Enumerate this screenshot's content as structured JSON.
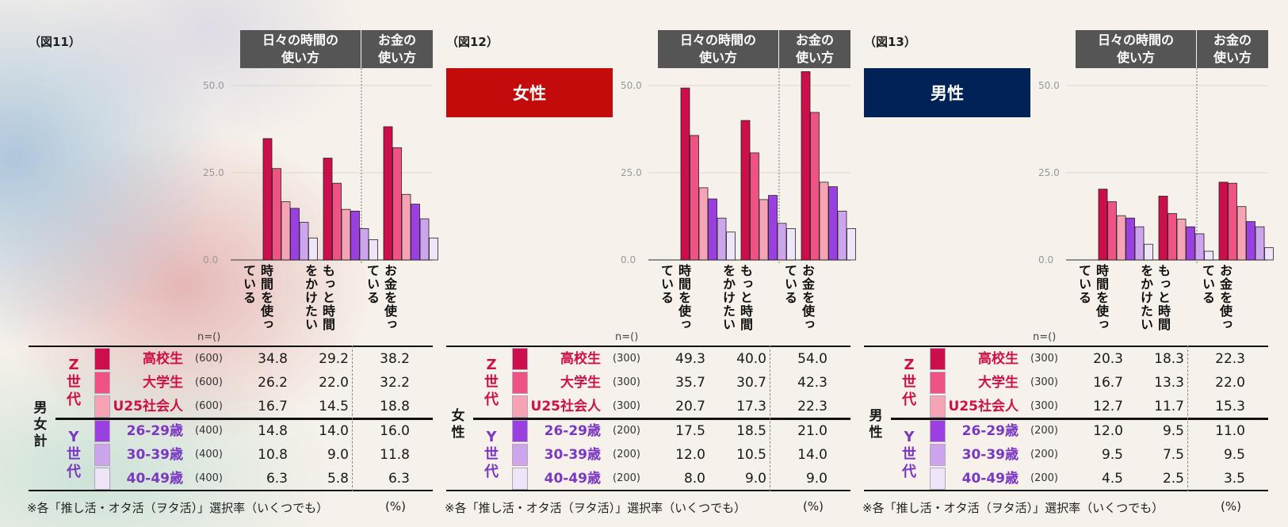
{
  "colors": {
    "z_hs": "#cc0e4c",
    "z_univ": "#ee5384",
    "z_u25": "#f5a3b5",
    "y_26": "#9a3fe0",
    "y_30": "#cda5ec",
    "y_40": "#efe5f8",
    "z_text": "#cc1144",
    "y_text": "#7a38c0",
    "female_badge": "#c40b0b",
    "male_badge": "#002257",
    "header_bg": "#555555"
  },
  "common": {
    "header_time_line1": "日々の時間の",
    "header_time_line2": "使い方",
    "header_money_line1": "お金の",
    "header_money_line2": "使い方",
    "n_label": "n=()",
    "footnote": "※各「推し活・オタ活（ヲタ活）」選択率（いくつでも）",
    "percent": "(%)",
    "z_gen": [
      "Z",
      "世",
      "代"
    ],
    "y_gen": [
      "Y",
      "世",
      "代"
    ],
    "row_labels": [
      "高校生",
      "大学生",
      "U25社会人",
      "26-29歳",
      "30-39歳",
      "40-49歳"
    ],
    "categories": [
      "時間を使っている",
      "もっと時間をかけたい",
      "お金を使っている"
    ],
    "cat_cols": [
      [
        "時間を使っ",
        "ている"
      ],
      [
        "もっと時間",
        "をかけたい"
      ],
      [
        "お金を使っ",
        "ている"
      ]
    ],
    "y_ticks": [
      "50.0",
      "25.0",
      "0.0"
    ]
  },
  "panels": [
    {
      "fig_label": "（図11）",
      "badge": "",
      "total_label": [
        "男",
        "女",
        "計"
      ],
      "n": [
        "(600)",
        "(600)",
        "(600)",
        "(400)",
        "(400)",
        "(400)"
      ],
      "values": [
        [
          "34.8",
          "29.2",
          "38.2"
        ],
        [
          "26.2",
          "22.0",
          "32.2"
        ],
        [
          "16.7",
          "14.5",
          "18.8"
        ],
        [
          "14.8",
          "14.0",
          "16.0"
        ],
        [
          "10.8",
          "9.0",
          "11.8"
        ],
        [
          "6.3",
          "5.8",
          "6.3"
        ]
      ]
    },
    {
      "fig_label": "（図12）",
      "badge": "女性",
      "total_label": [
        "女",
        "性"
      ],
      "n": [
        "(300)",
        "(300)",
        "(300)",
        "(200)",
        "(200)",
        "(200)"
      ],
      "values": [
        [
          "49.3",
          "40.0",
          "54.0"
        ],
        [
          "35.7",
          "30.7",
          "42.3"
        ],
        [
          "20.7",
          "17.3",
          "22.3"
        ],
        [
          "17.5",
          "18.5",
          "21.0"
        ],
        [
          "12.0",
          "10.5",
          "14.0"
        ],
        [
          "8.0",
          "9.0",
          "9.0"
        ]
      ]
    },
    {
      "fig_label": "（図13）",
      "badge": "男性",
      "total_label": [
        "男",
        "性"
      ],
      "n": [
        "(300)",
        "(300)",
        "(300)",
        "(200)",
        "(200)",
        "(200)"
      ],
      "values": [
        [
          "20.3",
          "18.3",
          "22.3"
        ],
        [
          "16.7",
          "13.3",
          "22.0"
        ],
        [
          "12.7",
          "11.7",
          "15.3"
        ],
        [
          "12.0",
          "9.5",
          "11.0"
        ],
        [
          "9.5",
          "7.5",
          "9.5"
        ],
        [
          "4.5",
          "2.5",
          "3.5"
        ]
      ]
    }
  ],
  "chart_data": [
    {
      "type": "bar",
      "title": "（図11） 男女計",
      "categories": [
        "時間を使っている",
        "もっと時間をかけたい",
        "お金を使っている"
      ],
      "ylim": [
        0,
        50
      ],
      "yticks": [
        0,
        25,
        50
      ],
      "series": [
        {
          "name": "Z世代 高校生",
          "values": [
            34.8,
            29.2,
            38.2
          ]
        },
        {
          "name": "Z世代 大学生",
          "values": [
            26.2,
            22.0,
            32.2
          ]
        },
        {
          "name": "Z世代 U25社会人",
          "values": [
            16.7,
            14.5,
            18.8
          ]
        },
        {
          "name": "Y世代 26-29歳",
          "values": [
            14.8,
            14.0,
            16.0
          ]
        },
        {
          "name": "Y世代 30-39歳",
          "values": [
            10.8,
            9.0,
            11.8
          ]
        },
        {
          "name": "Y世代 40-49歳",
          "values": [
            6.3,
            5.8,
            6.3
          ]
        }
      ]
    },
    {
      "type": "bar",
      "title": "（図12） 女性",
      "categories": [
        "時間を使っている",
        "もっと時間をかけたい",
        "お金を使っている"
      ],
      "ylim": [
        0,
        50
      ],
      "yticks": [
        0,
        25,
        50
      ],
      "series": [
        {
          "name": "Z世代 高校生",
          "values": [
            49.3,
            40.0,
            54.0
          ]
        },
        {
          "name": "Z世代 大学生",
          "values": [
            35.7,
            30.7,
            42.3
          ]
        },
        {
          "name": "Z世代 U25社会人",
          "values": [
            20.7,
            17.3,
            22.3
          ]
        },
        {
          "name": "Y世代 26-29歳",
          "values": [
            17.5,
            18.5,
            21.0
          ]
        },
        {
          "name": "Y世代 30-39歳",
          "values": [
            12.0,
            10.5,
            14.0
          ]
        },
        {
          "name": "Y世代 40-49歳",
          "values": [
            8.0,
            9.0,
            9.0
          ]
        }
      ]
    },
    {
      "type": "bar",
      "title": "（図13） 男性",
      "categories": [
        "時間を使っている",
        "もっと時間をかけたい",
        "お金を使っている"
      ],
      "ylim": [
        0,
        50
      ],
      "yticks": [
        0,
        25,
        50
      ],
      "series": [
        {
          "name": "Z世代 高校生",
          "values": [
            20.3,
            18.3,
            22.3
          ]
        },
        {
          "name": "Z世代 大学生",
          "values": [
            16.7,
            13.3,
            22.0
          ]
        },
        {
          "name": "Z世代 U25社会人",
          "values": [
            12.7,
            11.7,
            15.3
          ]
        },
        {
          "name": "Y世代 26-29歳",
          "values": [
            12.0,
            9.5,
            11.0
          ]
        },
        {
          "name": "Y世代 30-39歳",
          "values": [
            9.5,
            7.5,
            9.5
          ]
        },
        {
          "name": "Y世代 40-49歳",
          "values": [
            4.5,
            2.5,
            3.5
          ]
        }
      ]
    }
  ]
}
